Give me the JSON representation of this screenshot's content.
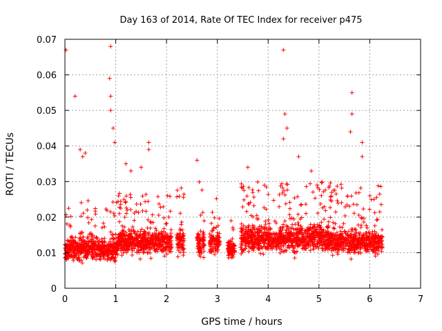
{
  "chart_data": {
    "type": "scatter",
    "title": "Day 163 of 2014, Rate Of TEC Index for receiver p475",
    "xlabel": "GPS time / hours",
    "ylabel": "ROTI / TECUs",
    "xlim": [
      0,
      7
    ],
    "ylim": [
      0,
      0.07
    ],
    "grid": true,
    "marker": "+",
    "marker_color": "#ff0000",
    "xticks": [
      0,
      1,
      2,
      3,
      4,
      5,
      6,
      7
    ],
    "xtick_labels": [
      "0",
      "1",
      "2",
      "3",
      "4",
      "5",
      "6",
      "7"
    ],
    "yticks": [
      0,
      0.01,
      0.02,
      0.03,
      0.04,
      0.05,
      0.06,
      0.07
    ],
    "ytick_labels": [
      "0",
      "0.01",
      "0.02",
      "0.03",
      "0.04",
      "0.05",
      "0.06",
      "0.07"
    ],
    "data_segments": [
      {
        "start": 0.0,
        "end": 1.05,
        "base": 0.011,
        "spread": 0.005,
        "upper": 0.025
      },
      {
        "start": 1.05,
        "end": 2.1,
        "base": 0.013,
        "spread": 0.005,
        "upper": 0.027
      },
      {
        "start": 2.2,
        "end": 2.35,
        "base": 0.013,
        "spread": 0.006,
        "upper": 0.03
      },
      {
        "start": 2.6,
        "end": 2.75,
        "base": 0.013,
        "spread": 0.006,
        "upper": 0.03
      },
      {
        "start": 2.85,
        "end": 3.05,
        "base": 0.013,
        "spread": 0.005,
        "upper": 0.026
      },
      {
        "start": 3.2,
        "end": 3.35,
        "base": 0.011,
        "spread": 0.004,
        "upper": 0.02
      },
      {
        "start": 3.45,
        "end": 5.2,
        "base": 0.014,
        "spread": 0.006,
        "upper": 0.03
      },
      {
        "start": 5.2,
        "end": 6.25,
        "base": 0.013,
        "spread": 0.005,
        "upper": 0.03
      }
    ],
    "outliers": [
      {
        "x": 0.02,
        "y": 0.067
      },
      {
        "x": 0.2,
        "y": 0.054
      },
      {
        "x": 0.3,
        "y": 0.039
      },
      {
        "x": 0.4,
        "y": 0.038
      },
      {
        "x": 0.88,
        "y": 0.059
      },
      {
        "x": 0.9,
        "y": 0.068
      },
      {
        "x": 0.9,
        "y": 0.05
      },
      {
        "x": 0.9,
        "y": 0.054
      },
      {
        "x": 0.95,
        "y": 0.045
      },
      {
        "x": 0.98,
        "y": 0.041
      },
      {
        "x": 1.3,
        "y": 0.033
      },
      {
        "x": 1.5,
        "y": 0.034
      },
      {
        "x": 1.65,
        "y": 0.041
      },
      {
        "x": 1.65,
        "y": 0.039
      },
      {
        "x": 2.6,
        "y": 0.036
      },
      {
        "x": 4.3,
        "y": 0.067
      },
      {
        "x": 4.33,
        "y": 0.049
      },
      {
        "x": 4.37,
        "y": 0.045
      },
      {
        "x": 4.3,
        "y": 0.042
      },
      {
        "x": 4.6,
        "y": 0.037
      },
      {
        "x": 5.65,
        "y": 0.055
      },
      {
        "x": 5.65,
        "y": 0.049
      },
      {
        "x": 5.62,
        "y": 0.044
      },
      {
        "x": 5.85,
        "y": 0.041
      },
      {
        "x": 5.85,
        "y": 0.037
      },
      {
        "x": 3.6,
        "y": 0.034
      },
      {
        "x": 4.85,
        "y": 0.033
      },
      {
        "x": 0.35,
        "y": 0.037
      },
      {
        "x": 1.2,
        "y": 0.035
      }
    ]
  }
}
